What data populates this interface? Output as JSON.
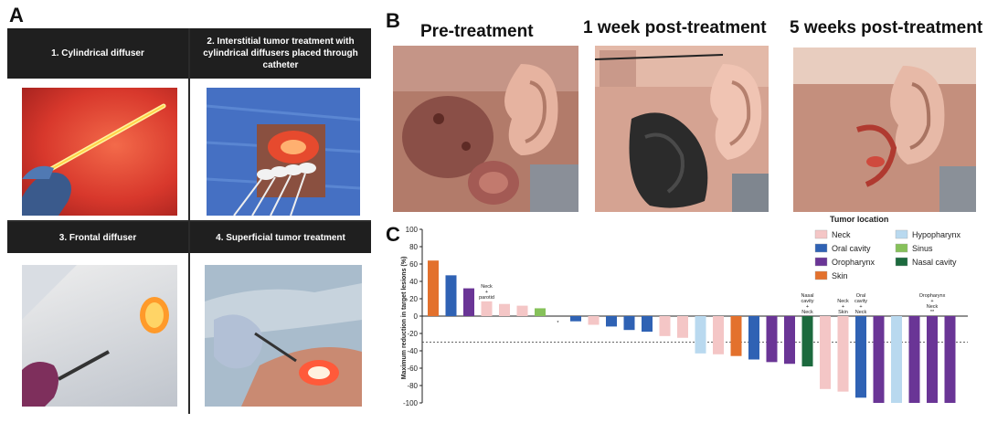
{
  "panel_a": {
    "letter": "A",
    "cells": [
      {
        "title": "1. Cylindrical diffuser"
      },
      {
        "title": "2. Interstitial tumor treatment with cylindrical diffusers placed through catheter"
      },
      {
        "title": "3. Frontal diffuser"
      },
      {
        "title": "4. Superficial tumor treatment"
      }
    ]
  },
  "panel_b": {
    "letter": "B",
    "titles": [
      "Pre-treatment",
      "1 week post-treatment",
      "5 weeks post-treatment"
    ]
  },
  "panel_c": {
    "letter": "C"
  },
  "colors": {
    "neck": "#f4c6c6",
    "oral_cavity": "#2f62b4",
    "oropharynx": "#6a3596",
    "skin": "#e3712d",
    "hypopharynx": "#b9d9ef",
    "sinus": "#86c15a",
    "nasal_cavity": "#1c6a3e"
  },
  "chart_data": {
    "type": "bar",
    "title": "",
    "xlabel": "",
    "ylabel": "Maximum reduction in target lesions (%)",
    "ylim": [
      -100,
      100
    ],
    "yticks": [
      100,
      80,
      60,
      40,
      20,
      0,
      -20,
      -40,
      -60,
      -80,
      -100
    ],
    "reference_line": -30,
    "legend_title": "Tumor location",
    "legend": [
      {
        "label": "Neck",
        "key": "neck"
      },
      {
        "label": "Hypopharynx",
        "key": "hypopharynx"
      },
      {
        "label": "Oral cavity",
        "key": "oral_cavity"
      },
      {
        "label": "Sinus",
        "key": "sinus"
      },
      {
        "label": "Oropharynx",
        "key": "oropharynx"
      },
      {
        "label": "Nasal cavity",
        "key": "nasal_cavity"
      },
      {
        "label": "Skin",
        "key": "skin"
      }
    ],
    "bars": [
      {
        "value": 64,
        "location": "skin"
      },
      {
        "value": 47,
        "location": "oral_cavity"
      },
      {
        "value": 32,
        "location": "oropharynx"
      },
      {
        "value": 17,
        "location": "neck",
        "annotation": "Neck + parotid"
      },
      {
        "value": 14,
        "location": "neck"
      },
      {
        "value": 12,
        "location": "neck"
      },
      {
        "value": 9,
        "location": "sinus"
      },
      {
        "value": 0,
        "location": "none",
        "annotation": "*"
      },
      {
        "value": -6,
        "location": "oral_cavity"
      },
      {
        "value": -10,
        "location": "neck"
      },
      {
        "value": -12,
        "location": "oral_cavity"
      },
      {
        "value": -16,
        "location": "oral_cavity"
      },
      {
        "value": -18,
        "location": "oral_cavity"
      },
      {
        "value": -23,
        "location": "neck"
      },
      {
        "value": -25,
        "location": "neck"
      },
      {
        "value": -43,
        "location": "hypopharynx"
      },
      {
        "value": -44,
        "location": "neck"
      },
      {
        "value": -46,
        "location": "skin"
      },
      {
        "value": -50,
        "location": "oral_cavity"
      },
      {
        "value": -53,
        "location": "oropharynx"
      },
      {
        "value": -55,
        "location": "oropharynx"
      },
      {
        "value": -58,
        "location": "nasal_cavity",
        "annotation": "Nasal cavity + Neck"
      },
      {
        "value": -84,
        "location": "neck"
      },
      {
        "value": -87,
        "location": "neck",
        "annotation": "Neck + Skin"
      },
      {
        "value": -94,
        "location": "oral_cavity",
        "annotation": "Oral cavity + Neck"
      },
      {
        "value": -100,
        "location": "oropharynx"
      },
      {
        "value": -100,
        "location": "hypopharynx"
      },
      {
        "value": -100,
        "location": "oropharynx"
      },
      {
        "value": -100,
        "location": "oropharynx",
        "annotation": "Oropharynx + Neck **"
      },
      {
        "value": -100,
        "location": "oropharynx"
      }
    ]
  }
}
